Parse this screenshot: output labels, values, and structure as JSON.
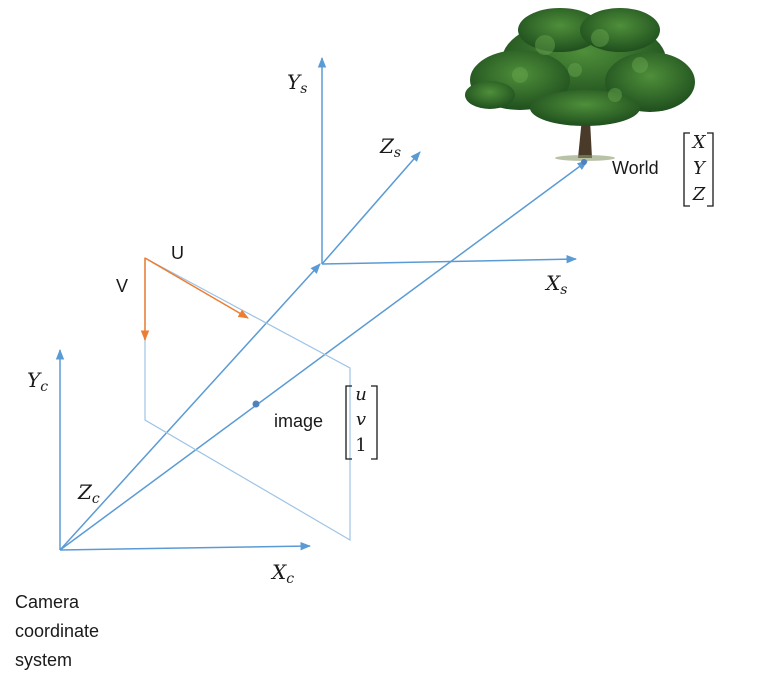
{
  "labels": {
    "ys": {
      "base": "Y",
      "sub": "s"
    },
    "zs": {
      "base": "Z",
      "sub": "s"
    },
    "xs": {
      "base": "X",
      "sub": "s"
    },
    "yc": {
      "base": "Y",
      "sub": "c"
    },
    "zc": {
      "base": "Z",
      "sub": "c"
    },
    "xc": {
      "base": "X",
      "sub": "c"
    },
    "u_axis": "U",
    "v_axis": "V",
    "world": "World",
    "image": "image"
  },
  "world_vector": [
    "X",
    "Y",
    "Z"
  ],
  "image_vector": [
    "u",
    "v",
    "1"
  ],
  "camera_caption": [
    "Camera",
    "coordinate",
    "system"
  ],
  "colors": {
    "axis_blue": "#5b9bd5",
    "uv_orange": "#ed7d31",
    "foliage": "#2f6b2a",
    "trunk": "#4a3a2a"
  },
  "icons": {
    "tree": "tree-image"
  }
}
